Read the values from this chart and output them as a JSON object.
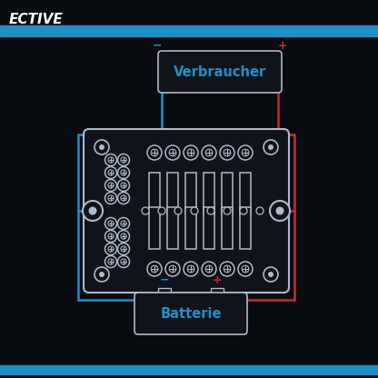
{
  "bg_color": "#080c10",
  "blue_color": "#1e90c8",
  "red_color": "#c03030",
  "light_gray": "#b0b8c8",
  "header_bar_color": "#1e90c8",
  "header_text": "ECTIVE",
  "header_text_color": "#ffffff",
  "verbraucher_text": "Verbraucher",
  "batterie_text": "Batterie",
  "text_color_blue": "#1e90c8",
  "minus_color": "#1e90c8",
  "plus_color": "#c03030",
  "board_bg": "#10141a",
  "board_border": "#b0b8c8",
  "figsize": [
    4.16,
    4.16
  ],
  "dpi": 100,
  "xlim": [
    0,
    416
  ],
  "ylim": [
    0,
    416
  ]
}
